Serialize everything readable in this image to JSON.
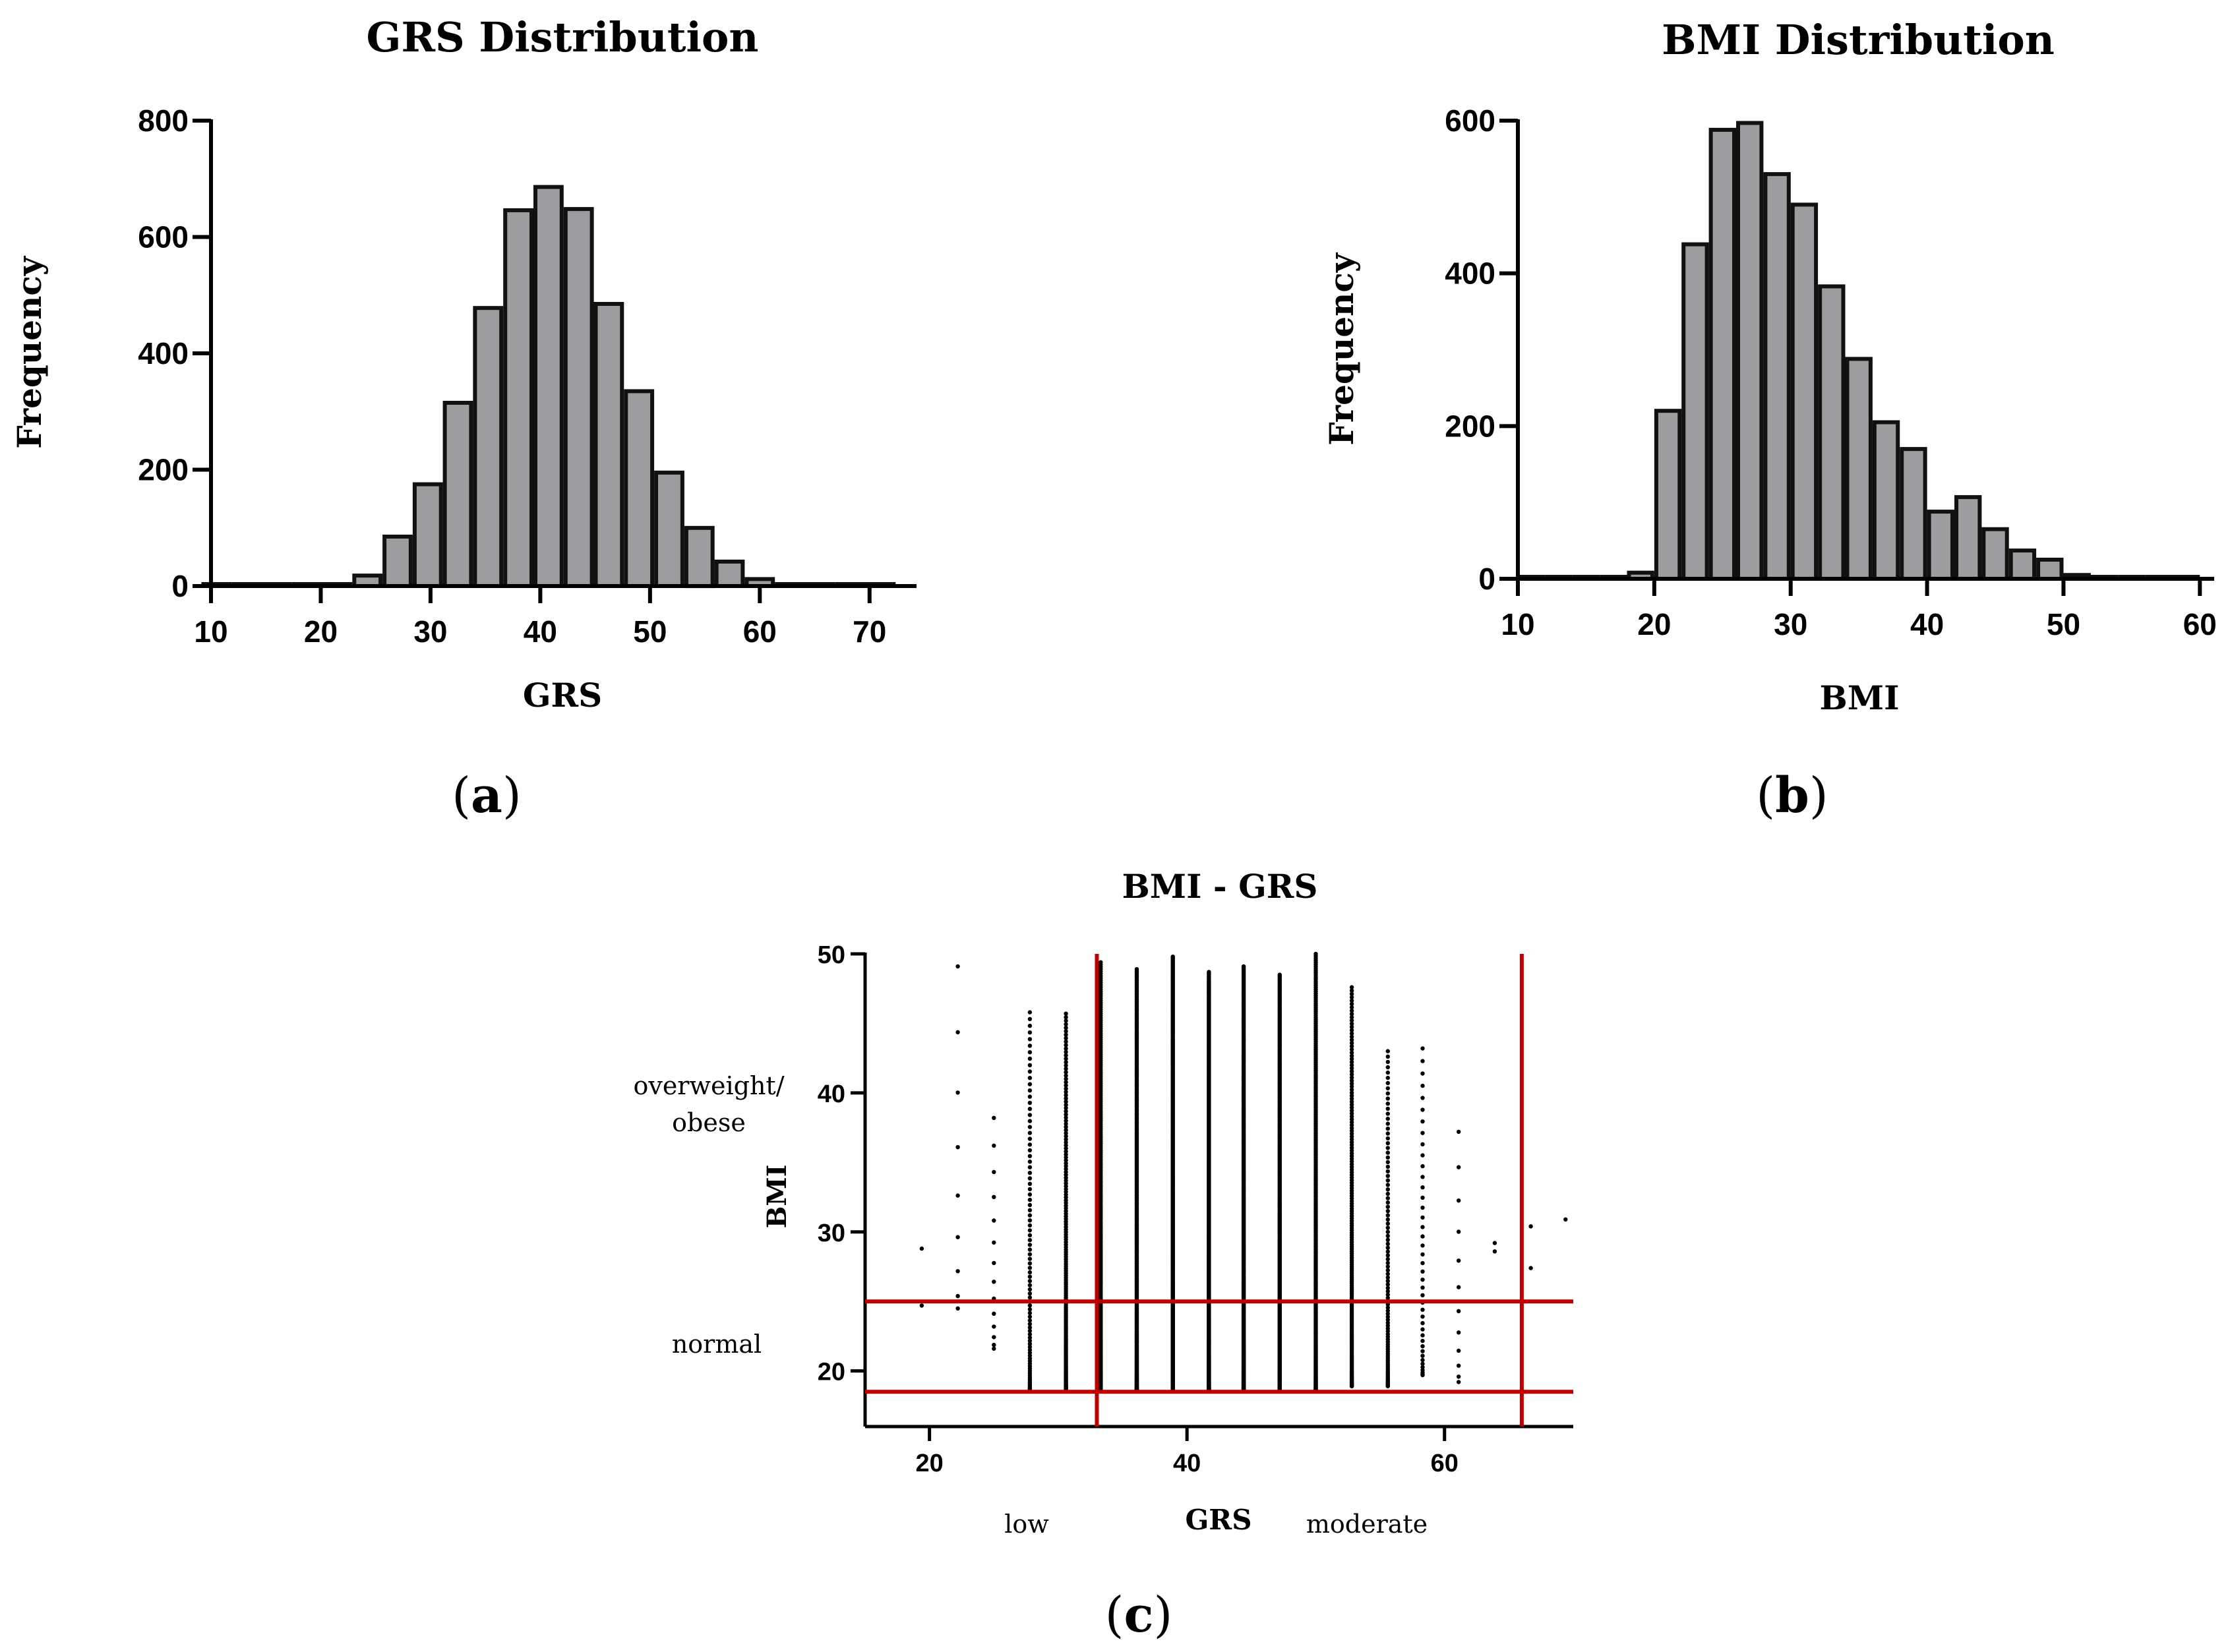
{
  "colors": {
    "bar_fill": "#9d9da0",
    "bar_stroke": "#111111",
    "axis": "#000000",
    "point": "#000000",
    "threshold": "#c00000",
    "text": "#000000"
  },
  "chart_data": [
    {
      "panel": "a",
      "type": "bar",
      "title": "GRS Distribution",
      "xlabel": "GRS",
      "ylabel": "Frequency",
      "caption_letter": "a",
      "caption_open": "(",
      "caption_close": ")",
      "xlim": [
        10,
        75
      ],
      "ylim": [
        0,
        800
      ],
      "xticks": [
        10,
        20,
        30,
        40,
        50,
        60,
        70
      ],
      "yticks": [
        0,
        200,
        400,
        600,
        800
      ],
      "bin_width": 2.75,
      "bin_centers": [
        10.5,
        13.25,
        16,
        18.75,
        21.5,
        24.25,
        27,
        29.75,
        32.5,
        35.25,
        38,
        40.75,
        43.5,
        46.25,
        49,
        51.75,
        54.5,
        57.25,
        60,
        62.75,
        65.5,
        68.25,
        71
      ],
      "values": [
        1,
        1,
        1,
        1,
        2,
        18,
        85,
        175,
        315,
        478,
        646,
        686,
        648,
        485,
        335,
        195,
        100,
        42,
        12,
        3,
        1,
        1,
        1
      ]
    },
    {
      "panel": "b",
      "type": "bar",
      "title": "BMI Distribution",
      "xlabel": "BMI",
      "ylabel": "Frequency",
      "caption_letter": "b",
      "caption_open": "(",
      "caption_close": ")",
      "xlim": [
        10,
        61
      ],
      "ylim": [
        0,
        600
      ],
      "xticks": [
        10,
        20,
        30,
        40,
        50,
        60
      ],
      "yticks": [
        0,
        200,
        400,
        600
      ],
      "bin_width": 2,
      "bin_centers": [
        11,
        13,
        15,
        17,
        19,
        21,
        23,
        25,
        27,
        29,
        31,
        33,
        35,
        37,
        39,
        41,
        43,
        45,
        47,
        49,
        51,
        53,
        55,
        57,
        59
      ],
      "values": [
        1,
        1,
        1,
        1,
        8,
        220,
        438,
        588,
        597,
        530,
        490,
        383,
        288,
        205,
        170,
        88,
        107,
        65,
        37,
        25,
        5,
        2,
        1,
        1,
        1
      ]
    },
    {
      "panel": "c",
      "type": "scatter",
      "title": "BMI - GRS",
      "xlabel": "GRS",
      "ylabel": "BMI",
      "caption_letter": "c",
      "caption_open": "(",
      "caption_close": ")",
      "xlim": [
        15,
        70
      ],
      "ylim": [
        16,
        50
      ],
      "xticks": [
        20,
        40,
        60
      ],
      "yticks": [
        20,
        30,
        40,
        50
      ],
      "grs_columns": [
        {
          "x": 19.4,
          "ymin": 24.7,
          "ymax": 28.8,
          "count": 2
        },
        {
          "x": 22.2,
          "ymin": 24.5,
          "ymax": 49.1,
          "count": 9
        },
        {
          "x": 25.0,
          "ymin": 21.6,
          "ymax": 38.2,
          "count": 14
        },
        {
          "x": 27.8,
          "ymin": 18.6,
          "ymax": 45.8,
          "count": 90
        },
        {
          "x": 30.6,
          "ymin": 18.7,
          "ymax": 45.7,
          "count": 170
        },
        {
          "x": 33.3,
          "ymin": 18.6,
          "ymax": 49.4,
          "count": 300
        },
        {
          "x": 36.1,
          "ymin": 18.6,
          "ymax": 48.9,
          "count": 470
        },
        {
          "x": 38.9,
          "ymin": 18.6,
          "ymax": 49.8,
          "count": 640
        },
        {
          "x": 41.7,
          "ymin": 18.6,
          "ymax": 48.7,
          "count": 680
        },
        {
          "x": 44.4,
          "ymin": 18.6,
          "ymax": 49.1,
          "count": 640
        },
        {
          "x": 47.2,
          "ymin": 18.6,
          "ymax": 48.5,
          "count": 480
        },
        {
          "x": 50.0,
          "ymin": 18.6,
          "ymax": 50.0,
          "count": 330
        },
        {
          "x": 52.8,
          "ymin": 18.9,
          "ymax": 47.6,
          "count": 190
        },
        {
          "x": 55.6,
          "ymin": 18.9,
          "ymax": 43.0,
          "count": 100
        },
        {
          "x": 58.3,
          "ymin": 19.7,
          "ymax": 43.2,
          "count": 42
        },
        {
          "x": 61.1,
          "ymin": 19.2,
          "ymax": 37.2,
          "count": 12
        },
        {
          "x": 63.9,
          "ymin": 28.6,
          "ymax": 29.2,
          "count": 2
        },
        {
          "x": 66.7,
          "ymin": 27.4,
          "ymax": 30.4,
          "count": 2
        },
        {
          "x": 69.4,
          "ymin": 30.9,
          "ymax": 30.9,
          "count": 1
        }
      ],
      "vlines": [
        33,
        66
      ],
      "hlines": [
        18.5,
        25
      ],
      "annotations": {
        "overweight_line1": "overweight/",
        "overweight_line2": "obese",
        "normal": "normal",
        "low": "low",
        "moderate": "moderate"
      }
    }
  ]
}
